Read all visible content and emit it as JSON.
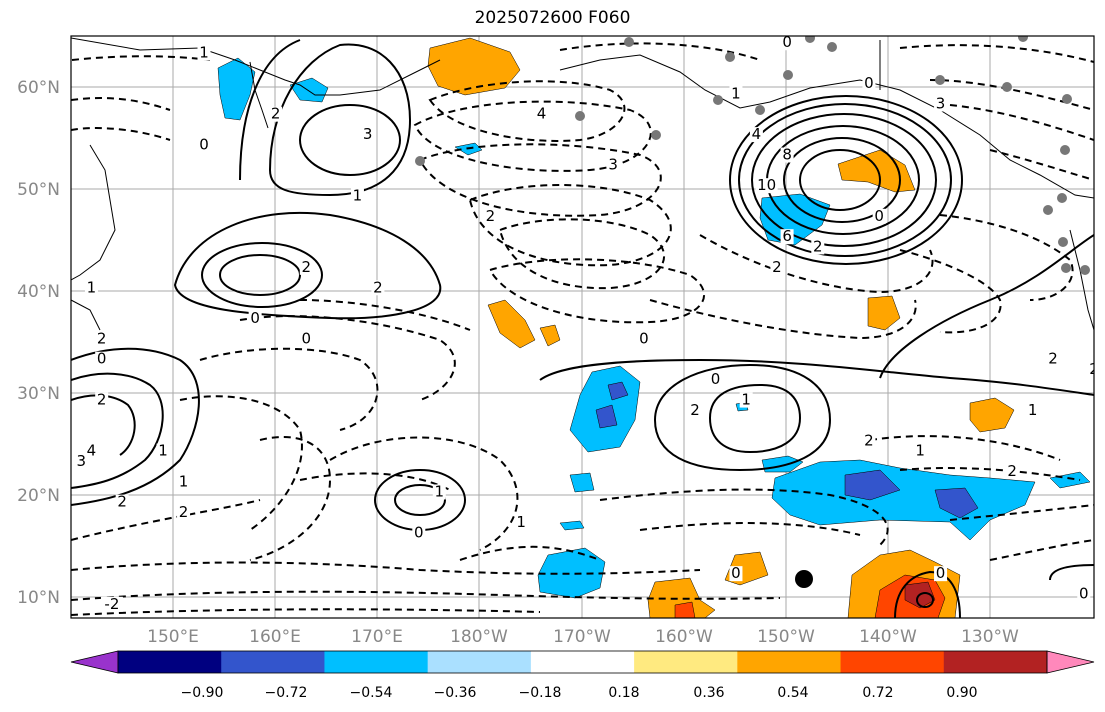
{
  "title": "2025072600 F060",
  "map": {
    "lat_labels": [
      "60°N",
      "50°N",
      "40°N",
      "30°N",
      "20°N",
      "10°N"
    ],
    "lon_labels": [
      "150°E",
      "160°E",
      "170°E",
      "180°W",
      "170°W",
      "160°W",
      "150°W",
      "140°W",
      "130°W"
    ],
    "extent": {
      "lon_min": 140,
      "lon_max": 240,
      "lat_min": 8,
      "lat_max": 65
    },
    "grid": true
  },
  "contour_labels": [
    {
      "text": "0",
      "lon": 210,
      "lat": 64
    },
    {
      "text": "4",
      "lon": 186,
      "lat": 57
    },
    {
      "text": "3",
      "lon": 193,
      "lat": 52
    },
    {
      "text": "1",
      "lon": 168,
      "lat": 49
    },
    {
      "text": "2",
      "lon": 163,
      "lat": 42
    },
    {
      "text": "2",
      "lon": 170,
      "lat": 40
    },
    {
      "text": "0",
      "lon": 158,
      "lat": 37
    },
    {
      "text": "0",
      "lon": 163,
      "lat": 35
    },
    {
      "text": "3",
      "lon": 169,
      "lat": 55
    },
    {
      "text": "2",
      "lon": 160,
      "lat": 57
    },
    {
      "text": "2",
      "lon": 181,
      "lat": 47
    },
    {
      "text": "1",
      "lon": 205,
      "lat": 59
    },
    {
      "text": "4",
      "lon": 207,
      "lat": 55
    },
    {
      "text": "8",
      "lon": 210,
      "lat": 53
    },
    {
      "text": "10",
      "lon": 208,
      "lat": 50
    },
    {
      "text": "6",
      "lon": 210,
      "lat": 45
    },
    {
      "text": "2",
      "lon": 213,
      "lat": 44
    },
    {
      "text": "2",
      "lon": 209,
      "lat": 42
    },
    {
      "text": "0",
      "lon": 219,
      "lat": 47
    },
    {
      "text": "3",
      "lon": 225,
      "lat": 58
    },
    {
      "text": "0",
      "lon": 218,
      "lat": 60
    },
    {
      "text": "0",
      "lon": 196,
      "lat": 35
    },
    {
      "text": "0",
      "lon": 203,
      "lat": 31
    },
    {
      "text": "1",
      "lon": 206,
      "lat": 29
    },
    {
      "text": "2",
      "lon": 201,
      "lat": 28
    },
    {
      "text": "2",
      "lon": 236,
      "lat": 33
    },
    {
      "text": "2",
      "lon": 240,
      "lat": 32
    },
    {
      "text": "1",
      "lon": 234,
      "lat": 28
    },
    {
      "text": "2",
      "lon": 232,
      "lat": 22
    },
    {
      "text": "1",
      "lon": 223,
      "lat": 24
    },
    {
      "text": "2",
      "lon": 218,
      "lat": 25
    },
    {
      "text": "1",
      "lon": 176,
      "lat": 20
    },
    {
      "text": "0",
      "lon": 174,
      "lat": 16
    },
    {
      "text": "1",
      "lon": 184,
      "lat": 17
    },
    {
      "text": "0",
      "lon": 205,
      "lat": 12
    },
    {
      "text": "0",
      "lon": 225,
      "lat": 12
    },
    {
      "text": "0",
      "lon": 239,
      "lat": 10
    },
    {
      "text": "2",
      "lon": 143,
      "lat": 29
    },
    {
      "text": "4",
      "lon": 142,
      "lat": 24
    },
    {
      "text": "3",
      "lon": 141,
      "lat": 23
    },
    {
      "text": "1",
      "lon": 149,
      "lat": 24
    },
    {
      "text": "2",
      "lon": 145,
      "lat": 19
    },
    {
      "text": "1",
      "lon": 151,
      "lat": 21
    },
    {
      "text": "2",
      "lon": 151,
      "lat": 18
    },
    {
      "text": "0",
      "lon": 143,
      "lat": 33
    },
    {
      "text": "2",
      "lon": 143,
      "lat": 35
    },
    {
      "text": "1",
      "lon": 142,
      "lat": 40
    },
    {
      "text": "-2",
      "lon": 144,
      "lat": 9
    },
    {
      "text": "0",
      "lon": 153,
      "lat": 54
    },
    {
      "text": "1",
      "lon": 153,
      "lat": 63
    }
  ],
  "colorbar": {
    "colors": [
      "#9933cc",
      "#000080",
      "#3355cc",
      "#00bfff",
      "#aae0ff",
      "#ffffff",
      "#ffea80",
      "#ffa500",
      "#ff4500",
      "#b22222",
      "#ff88bb"
    ],
    "labels": [
      "−0.90",
      "−0.72",
      "−0.54",
      "−0.36",
      "−0.18",
      "0.18",
      "0.36",
      "0.54",
      "0.72",
      "0.90"
    ]
  }
}
